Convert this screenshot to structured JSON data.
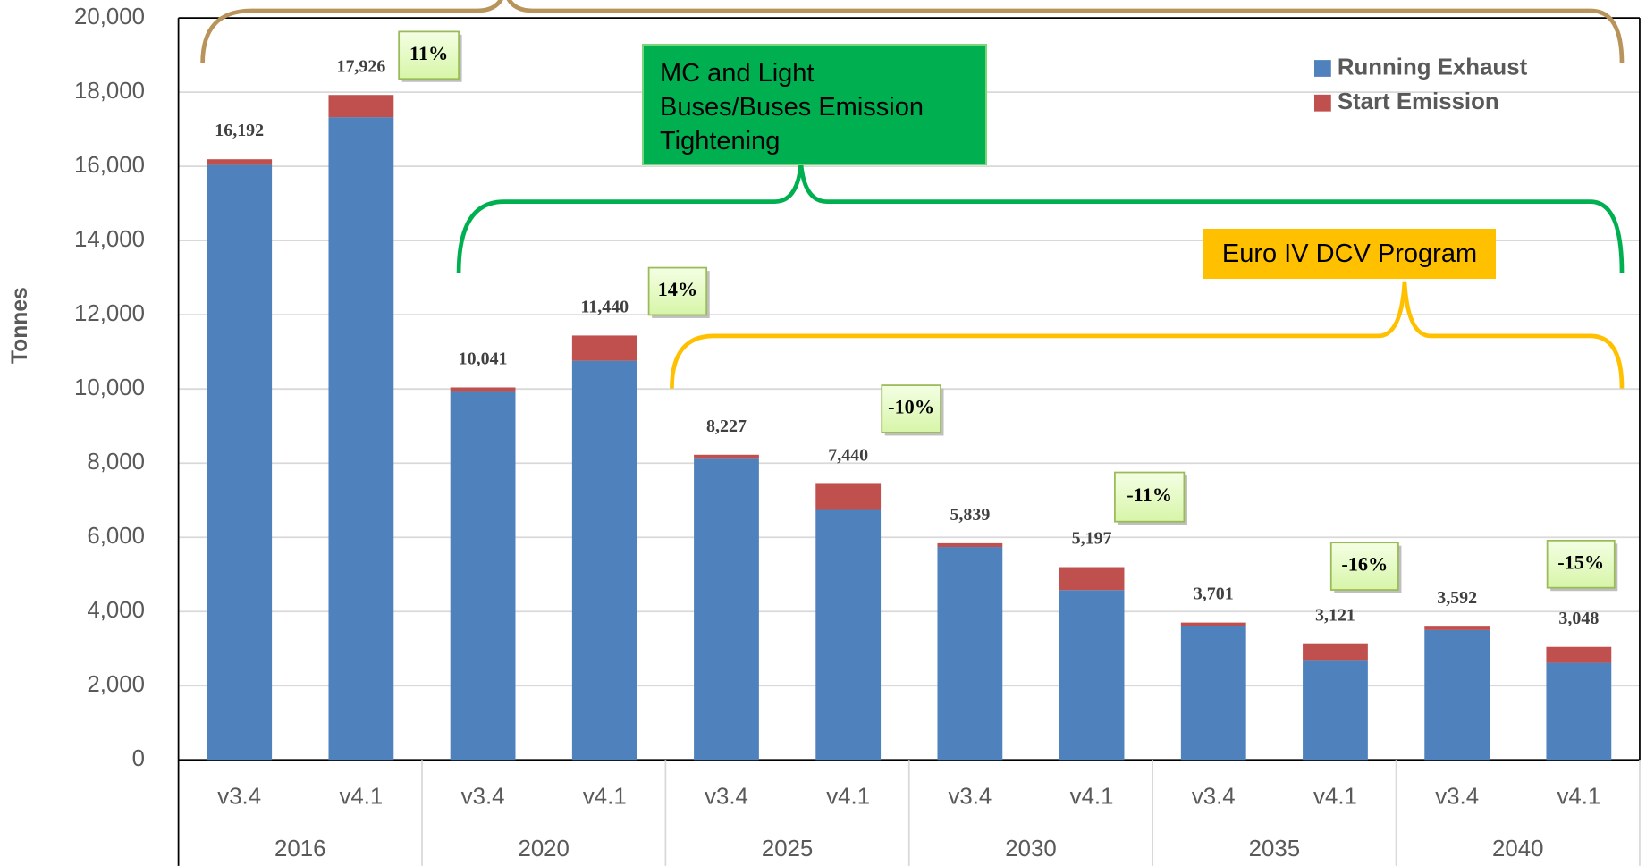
{
  "chart_data": {
    "type": "stacked_bar",
    "y_label": "Tonnes",
    "categories": [
      "v3.4",
      "v4.1",
      "v3.4",
      "v4.1",
      "v3.4",
      "v4.1",
      "v3.4",
      "v4.1",
      "v3.4",
      "v4.1",
      "v3.4",
      "v4.1"
    ],
    "groups": [
      "2016",
      "2020",
      "2025",
      "2030",
      "2035",
      "2040"
    ],
    "series": [
      {
        "name": "Running Exhaust",
        "color": "#4f81bd",
        "values": [
          16042,
          17326,
          9921,
          10760,
          8117,
          6740,
          5739,
          4577,
          3611,
          2671,
          3502,
          2618
        ]
      },
      {
        "name": "Start Emission",
        "color": "#c0504d",
        "values": [
          150,
          600,
          120,
          680,
          110,
          700,
          100,
          620,
          90,
          450,
          90,
          430
        ]
      }
    ],
    "totals": [
      16192,
      17926,
      10041,
      11440,
      8227,
      7440,
      5839,
      5197,
      3701,
      3121,
      3592,
      3048
    ],
    "total_labels": [
      "16,192",
      "17,926",
      "10,041",
      "11,440",
      "8,227",
      "7,440",
      "5,839",
      "5,197",
      "3,701",
      "3,121",
      "3,592",
      "3,048"
    ],
    "change_labels": [
      "11%",
      "14%",
      "-10%",
      "-11%",
      "-16%",
      "-15%"
    ],
    "annotations": [
      "MC and Light Buses/Buses Emission Tightening",
      "Euro IV DCV Program"
    ],
    "ylim": [
      0,
      20000
    ],
    "yticks": [
      0,
      {
        "value": 2000,
        "label": "2,000"
      },
      {
        "value": 4000,
        "label": "4,000"
      },
      {
        "value": 6000,
        "label": "6,000"
      },
      {
        "value": 8000,
        "label": "8,000"
      },
      {
        "value": 10000,
        "label": "10,000"
      },
      {
        "value": 12000,
        "label": "12,000"
      },
      {
        "value": 14000,
        "label": "14,000"
      },
      {
        "value": 16000,
        "label": "16,000"
      },
      {
        "value": 18000,
        "label": "18,000"
      },
      {
        "value": 20000,
        "label": "20,000"
      }
    ],
    "grid": true,
    "legend": "top-right"
  }
}
